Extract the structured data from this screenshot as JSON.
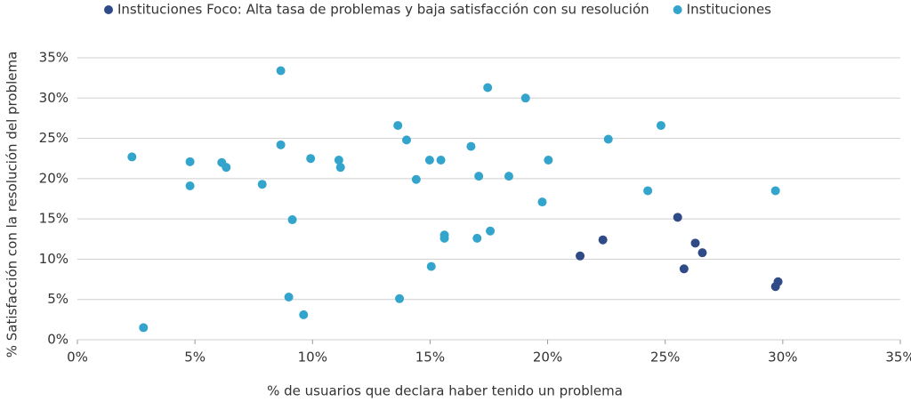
{
  "chart_data": {
    "type": "scatter",
    "x_label": "% de usuarios que declara haber tenido un problema",
    "y_label": "% Satisfacción con la resolución del problema",
    "xlim": [
      0,
      35
    ],
    "ylim": [
      0,
      35
    ],
    "xticks": [
      {
        "value": 0,
        "label": "0%"
      },
      {
        "value": 5,
        "label": "5%"
      },
      {
        "value": 10,
        "label": "10%"
      },
      {
        "value": 15,
        "label": "15%"
      },
      {
        "value": 20,
        "label": "20%"
      },
      {
        "value": 25,
        "label": "25%"
      },
      {
        "value": 30,
        "label": "30%"
      },
      {
        "value": 35,
        "label": "35%"
      }
    ],
    "yticks": [
      {
        "value": 0,
        "label": "0%"
      },
      {
        "value": 5,
        "label": "5%"
      },
      {
        "value": 10,
        "label": "10%"
      },
      {
        "value": 15,
        "label": "15%"
      },
      {
        "value": 20,
        "label": "20%"
      },
      {
        "value": 25,
        "label": "25%"
      },
      {
        "value": 30,
        "label": "30%"
      },
      {
        "value": 35,
        "label": "35%"
      }
    ],
    "grid": true,
    "series": [
      {
        "name": "Instituciones Foco: Alta tasa de problemas y baja satisfacción con su resolución",
        "color": "#2e4a87",
        "x": [
          21.38,
          22.35,
          25.53,
          26.28,
          25.8,
          26.58,
          29.69,
          29.8
        ],
        "values": [
          10.4,
          12.4,
          15.2,
          12.0,
          8.8,
          10.8,
          6.6,
          7.2
        ]
      },
      {
        "name": "Instituciones",
        "color": "#33a4cc",
        "x": [
          2.32,
          2.81,
          4.79,
          4.79,
          6.14,
          6.33,
          7.86,
          8.65,
          8.65,
          9.14,
          8.99,
          9.62,
          9.92,
          11.12,
          11.19,
          13.63,
          13.7,
          14.0,
          14.41,
          14.98,
          15.05,
          15.46,
          15.61,
          15.61,
          16.74,
          17.0,
          17.07,
          17.45,
          17.56,
          18.35,
          19.06,
          19.77,
          20.03,
          22.58,
          24.26,
          24.82,
          29.69
        ],
        "values": [
          22.7,
          1.5,
          22.1,
          19.1,
          22.0,
          21.4,
          19.3,
          33.4,
          24.2,
          14.9,
          5.3,
          3.1,
          22.5,
          22.3,
          21.4,
          26.6,
          5.1,
          24.8,
          19.9,
          22.3,
          9.1,
          22.3,
          13.0,
          12.6,
          24.0,
          12.6,
          20.3,
          31.3,
          13.5,
          20.3,
          30.0,
          17.1,
          22.3,
          24.9,
          18.5,
          26.6,
          18.5
        ]
      }
    ]
  }
}
